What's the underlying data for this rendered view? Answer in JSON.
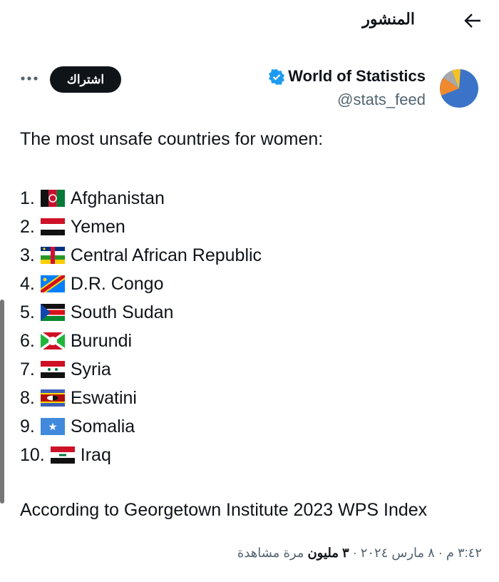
{
  "header": {
    "title": "المنشور"
  },
  "post": {
    "author": "World of Statistics",
    "handle": "@stats_feed",
    "subscribe": "اشتراك",
    "intro": "The most unsafe countries for women:",
    "items": [
      {
        "rank": "1.",
        "country": "Afghanistan"
      },
      {
        "rank": "2.",
        "country": "Yemen"
      },
      {
        "rank": "3.",
        "country": "Central African Republic"
      },
      {
        "rank": "4.",
        "country": "D.R. Congo"
      },
      {
        "rank": "5.",
        "country": "South Sudan"
      },
      {
        "rank": "6.",
        "country": "Burundi"
      },
      {
        "rank": "7.",
        "country": "Syria"
      },
      {
        "rank": "8.",
        "country": "Eswatini"
      },
      {
        "rank": "9.",
        "country": "Somalia"
      },
      {
        "rank": "10.",
        "country": "Iraq"
      }
    ],
    "source": "According to Georgetown Institute 2023 WPS Index",
    "meta": {
      "time": "٣:٤٢ م · ٨ مارس ٢٠٢٤ ·",
      "views": "٣ مليون",
      "views_label": "مرة مشاهدة"
    }
  }
}
